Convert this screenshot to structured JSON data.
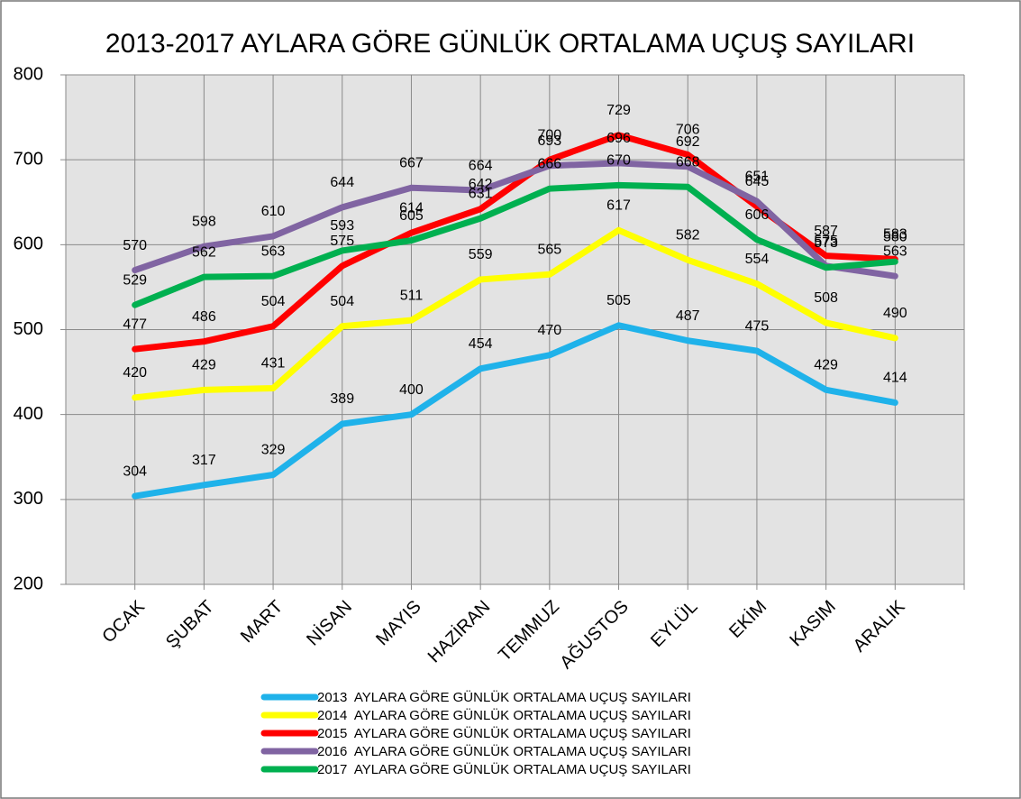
{
  "chart_data": {
    "type": "line",
    "title": "2013-2017 AYLARA GÖRE GÜNLÜK ORTALAMA UÇUŞ SAYILARI",
    "categories": [
      "OCAK",
      "ŞUBAT",
      "MART",
      "NİSAN",
      "MAYIS",
      "HAZİRAN",
      "TEMMUZ",
      "AĞUSTOS",
      "EYLÜL",
      "EKİM",
      "KASIM",
      "ARALIK"
    ],
    "series": [
      {
        "name": "2013  AYLARA GÖRE GÜNLÜK ORTALAMA UÇUŞ SAYILARI",
        "color": "#1fb2ea",
        "values": [
          304,
          317,
          329,
          389,
          400,
          454,
          470,
          505,
          487,
          475,
          429,
          414
        ]
      },
      {
        "name": "2014  AYLARA GÖRE GÜNLÜK ORTALAMA UÇUŞ SAYILARI",
        "color": "#ffff00",
        "values": [
          420,
          429,
          431,
          504,
          511,
          559,
          565,
          617,
          582,
          554,
          508,
          490
        ]
      },
      {
        "name": "2015  AYLARA GÖRE GÜNLÜK ORTALAMA UÇUŞ SAYILARI",
        "color": "#ff0000",
        "values": [
          477,
          486,
          504,
          575,
          614,
          642,
          700,
          729,
          706,
          645,
          587,
          583
        ]
      },
      {
        "name": "2016  AYLARA GÖRE GÜNLÜK ORTALAMA UÇUŞ SAYILARI",
        "color": "#8064a2",
        "values": [
          570,
          598,
          610,
          644,
          667,
          664,
          693,
          696,
          692,
          651,
          575,
          563
        ]
      },
      {
        "name": "2017  AYLARA GÖRE GÜNLÜK ORTALAMA UÇUŞ SAYILARI",
        "color": "#00b050",
        "values": [
          529,
          562,
          563,
          593,
          605,
          631,
          666,
          670,
          668,
          606,
          573,
          580
        ]
      }
    ],
    "ylim": [
      200,
      800
    ],
    "yticks": [
      200,
      300,
      400,
      500,
      600,
      700,
      800
    ],
    "grid": true
  }
}
